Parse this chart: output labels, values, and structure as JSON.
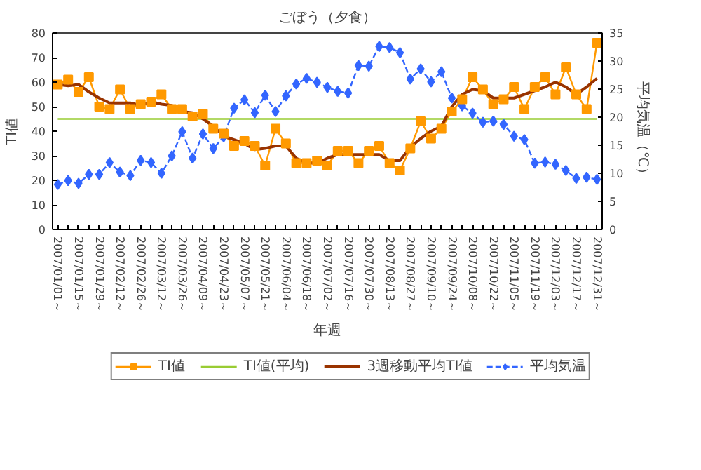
{
  "chart_data": {
    "type": "line",
    "title": "ごぼう（夕食）",
    "xlabel": "年週",
    "ylabel": "TI値",
    "y2label": "平均気温（℃）",
    "categories": [
      "2007/01/01～",
      null,
      "2007/01/15～",
      null,
      "2007/01/29～",
      null,
      "2007/02/12～",
      null,
      "2007/02/26～",
      null,
      "2007/03/12～",
      null,
      "2007/03/26～",
      null,
      "2007/04/09～",
      null,
      "2007/04/23～",
      null,
      "2007/05/07～",
      null,
      "2007/05/21～",
      null,
      "2007/06/04～",
      null,
      "2007/06/18～",
      null,
      "2007/07/02～",
      null,
      "2007/07/16～",
      null,
      "2007/07/30～",
      null,
      "2007/08/13～",
      null,
      "2007/08/27～",
      null,
      "2007/09/10～",
      null,
      "2007/09/24～",
      null,
      "2007/10/08～",
      null,
      "2007/10/22～",
      null,
      "2007/11/05～",
      null,
      "2007/11/19～",
      null,
      "2007/12/03～",
      null,
      "2007/12/17～",
      null,
      "2007/12/31～"
    ],
    "series": [
      {
        "name": "TI値",
        "color": "#ff9900",
        "marker": "square",
        "line_style": "solid",
        "values": [
          59,
          61,
          56,
          62,
          50,
          49,
          57,
          49,
          51,
          52,
          55,
          49,
          49,
          46,
          47,
          41,
          39,
          34,
          36,
          34,
          26,
          41,
          35,
          27,
          27,
          28,
          26,
          32,
          32,
          27,
          32,
          34,
          27,
          24,
          33,
          44,
          37,
          41,
          48,
          53,
          62,
          57,
          51,
          53,
          58,
          49,
          58,
          62,
          55,
          66,
          55,
          49,
          76
        ]
      },
      {
        "name": "TI値(平均)",
        "color": "#99cc33",
        "marker": "none",
        "line_style": "solid",
        "values": [
          45,
          45,
          45,
          45,
          45,
          45,
          45,
          45,
          45,
          45,
          45,
          45,
          45,
          45,
          45,
          45,
          45,
          45,
          45,
          45,
          45,
          45,
          45,
          45,
          45,
          45,
          45,
          45,
          45,
          45,
          45,
          45,
          45,
          45,
          45,
          45,
          45,
          45,
          45,
          45,
          45,
          45,
          45,
          45,
          45,
          45,
          45,
          45,
          45,
          45,
          45,
          45,
          45
        ]
      },
      {
        "name": "3週移動平均TI値",
        "color": "#993300",
        "marker": "none",
        "line_style": "solid",
        "values": [
          59,
          58.5,
          59,
          56,
          53.5,
          51.5,
          51.5,
          51.5,
          50.5,
          52,
          51,
          50.5,
          48,
          47.5,
          45,
          42,
          38,
          36.5,
          35,
          32.5,
          33,
          34,
          34,
          29,
          27,
          27,
          29,
          30.5,
          30.5,
          30.5,
          30.5,
          30.5,
          28,
          28,
          33.5,
          37,
          40,
          42,
          50,
          55,
          57,
          56.5,
          53.5,
          53.5,
          53.5,
          55,
          56.5,
          58,
          60,
          58,
          55,
          58,
          61.5
        ]
      },
      {
        "name": "平均気温",
        "color": "#3366ff",
        "marker": "diamond",
        "line_style": "dashed",
        "axis": "y2",
        "values": [
          8.0,
          8.7,
          8.2,
          9.8,
          9.8,
          11.9,
          10.2,
          9.6,
          12.3,
          11.9,
          10.0,
          13.1,
          17.4,
          12.7,
          17.0,
          14.4,
          16.5,
          21.6,
          23.1,
          20.8,
          23.9,
          21.0,
          23.8,
          25.9,
          26.9,
          26.2,
          25.3,
          24.6,
          24.3,
          29.2,
          29.1,
          32.6,
          32.4,
          31.5,
          26.8,
          28.6,
          26.3,
          28.1,
          23.4,
          22.0,
          20.7,
          19.1,
          19.3,
          18.7,
          16.6,
          16.0,
          11.8,
          12.0,
          11.6,
          10.5,
          9.1,
          9.3,
          8.9
        ]
      }
    ],
    "ylim": [
      0,
      80
    ],
    "yticks": [
      0,
      10,
      20,
      30,
      40,
      50,
      60,
      70,
      80
    ],
    "y2lim": [
      0,
      35
    ],
    "y2ticks": [
      0,
      5,
      10,
      15,
      20,
      25,
      30,
      35
    ],
    "grid": false,
    "legend": "bottom"
  }
}
